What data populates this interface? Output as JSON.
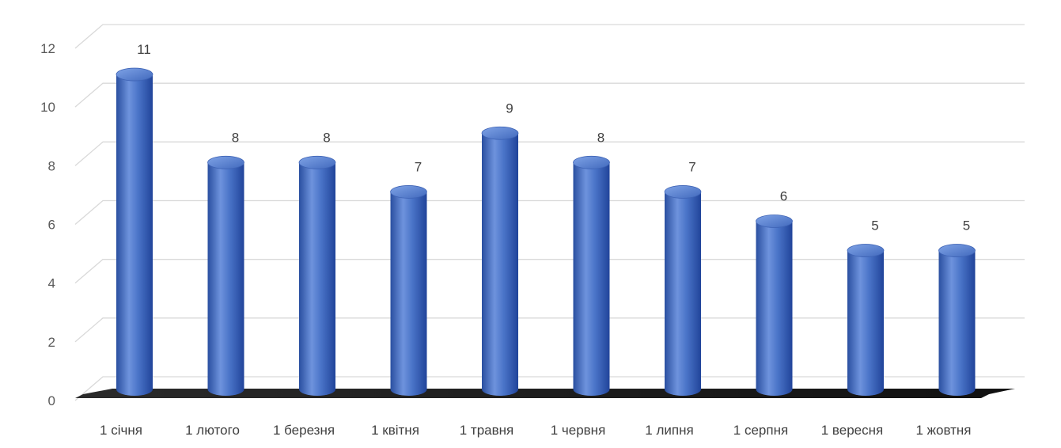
{
  "chart_data": {
    "type": "bar",
    "title": "",
    "xlabel": "",
    "ylabel": "",
    "categories": [
      "1 січня",
      "1 лютого",
      "1 березня",
      "1 квітня",
      "1 травня",
      "1 червня",
      "1 липня",
      "1 серпня",
      "1 вересня",
      "1 жовтня"
    ],
    "values": [
      11,
      8,
      8,
      7,
      9,
      8,
      7,
      6,
      5,
      5
    ],
    "data_labels": [
      "11",
      "8",
      "8",
      "7",
      "9",
      "8",
      "7",
      "6",
      "5",
      "5"
    ],
    "y_ticks": [
      "0",
      "2",
      "4",
      "6",
      "8",
      "10",
      "12"
    ],
    "ylim": [
      0,
      12
    ],
    "grid": true,
    "style": "3d-cylinder",
    "colors": {
      "bar": "#4472C4",
      "bar_dark": "#2F55A8",
      "bar_light": "#7FA3E6",
      "grid": "#D9D9D9",
      "floor": "#1A1A1A",
      "text": "#404040"
    }
  }
}
